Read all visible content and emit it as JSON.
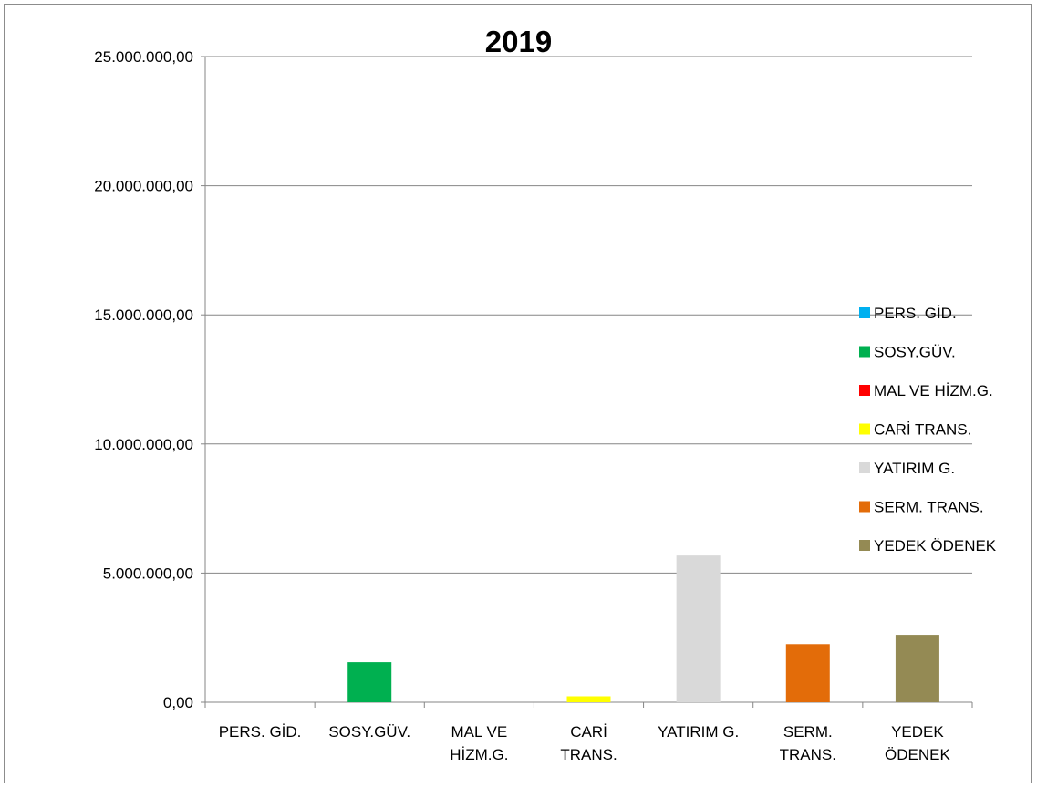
{
  "chart_data": {
    "type": "bar",
    "title": "2019",
    "categories": [
      [
        "PERS. GİD."
      ],
      [
        "SOSY.GÜV."
      ],
      [
        "MAL VE",
        "HİZM.G."
      ],
      [
        "CARİ",
        "TRANS."
      ],
      [
        "YATIRIM G."
      ],
      [
        "SERM.",
        "TRANS."
      ],
      [
        "YEDEK",
        "ÖDENEK"
      ]
    ],
    "values": [
      0,
      1550000,
      0,
      230000,
      5680000,
      2250000,
      2610000
    ],
    "colors": [
      "#00b0f0",
      "#00b050",
      "#ff0000",
      "#ffff00",
      "#d9d9d9",
      "#e36c09",
      "#948a54"
    ],
    "legend": [
      "PERS. GİD.",
      "SOSY.GÜV.",
      "MAL VE HİZM.G.",
      "CARİ TRANS.",
      "YATIRIM G.",
      "SERM. TRANS.",
      "YEDEK ÖDENEK"
    ],
    "legend_position": "right",
    "ylim": [
      0,
      25000000
    ],
    "yticks": [
      0,
      5000000,
      10000000,
      15000000,
      20000000,
      25000000
    ],
    "ytick_labels": [
      "0,00",
      "5.000.000,00",
      "10.000.000,00",
      "15.000.000,00",
      "20.000.000,00",
      "25.000.000,00"
    ],
    "xlabel": "",
    "ylabel": "",
    "grid": true
  }
}
